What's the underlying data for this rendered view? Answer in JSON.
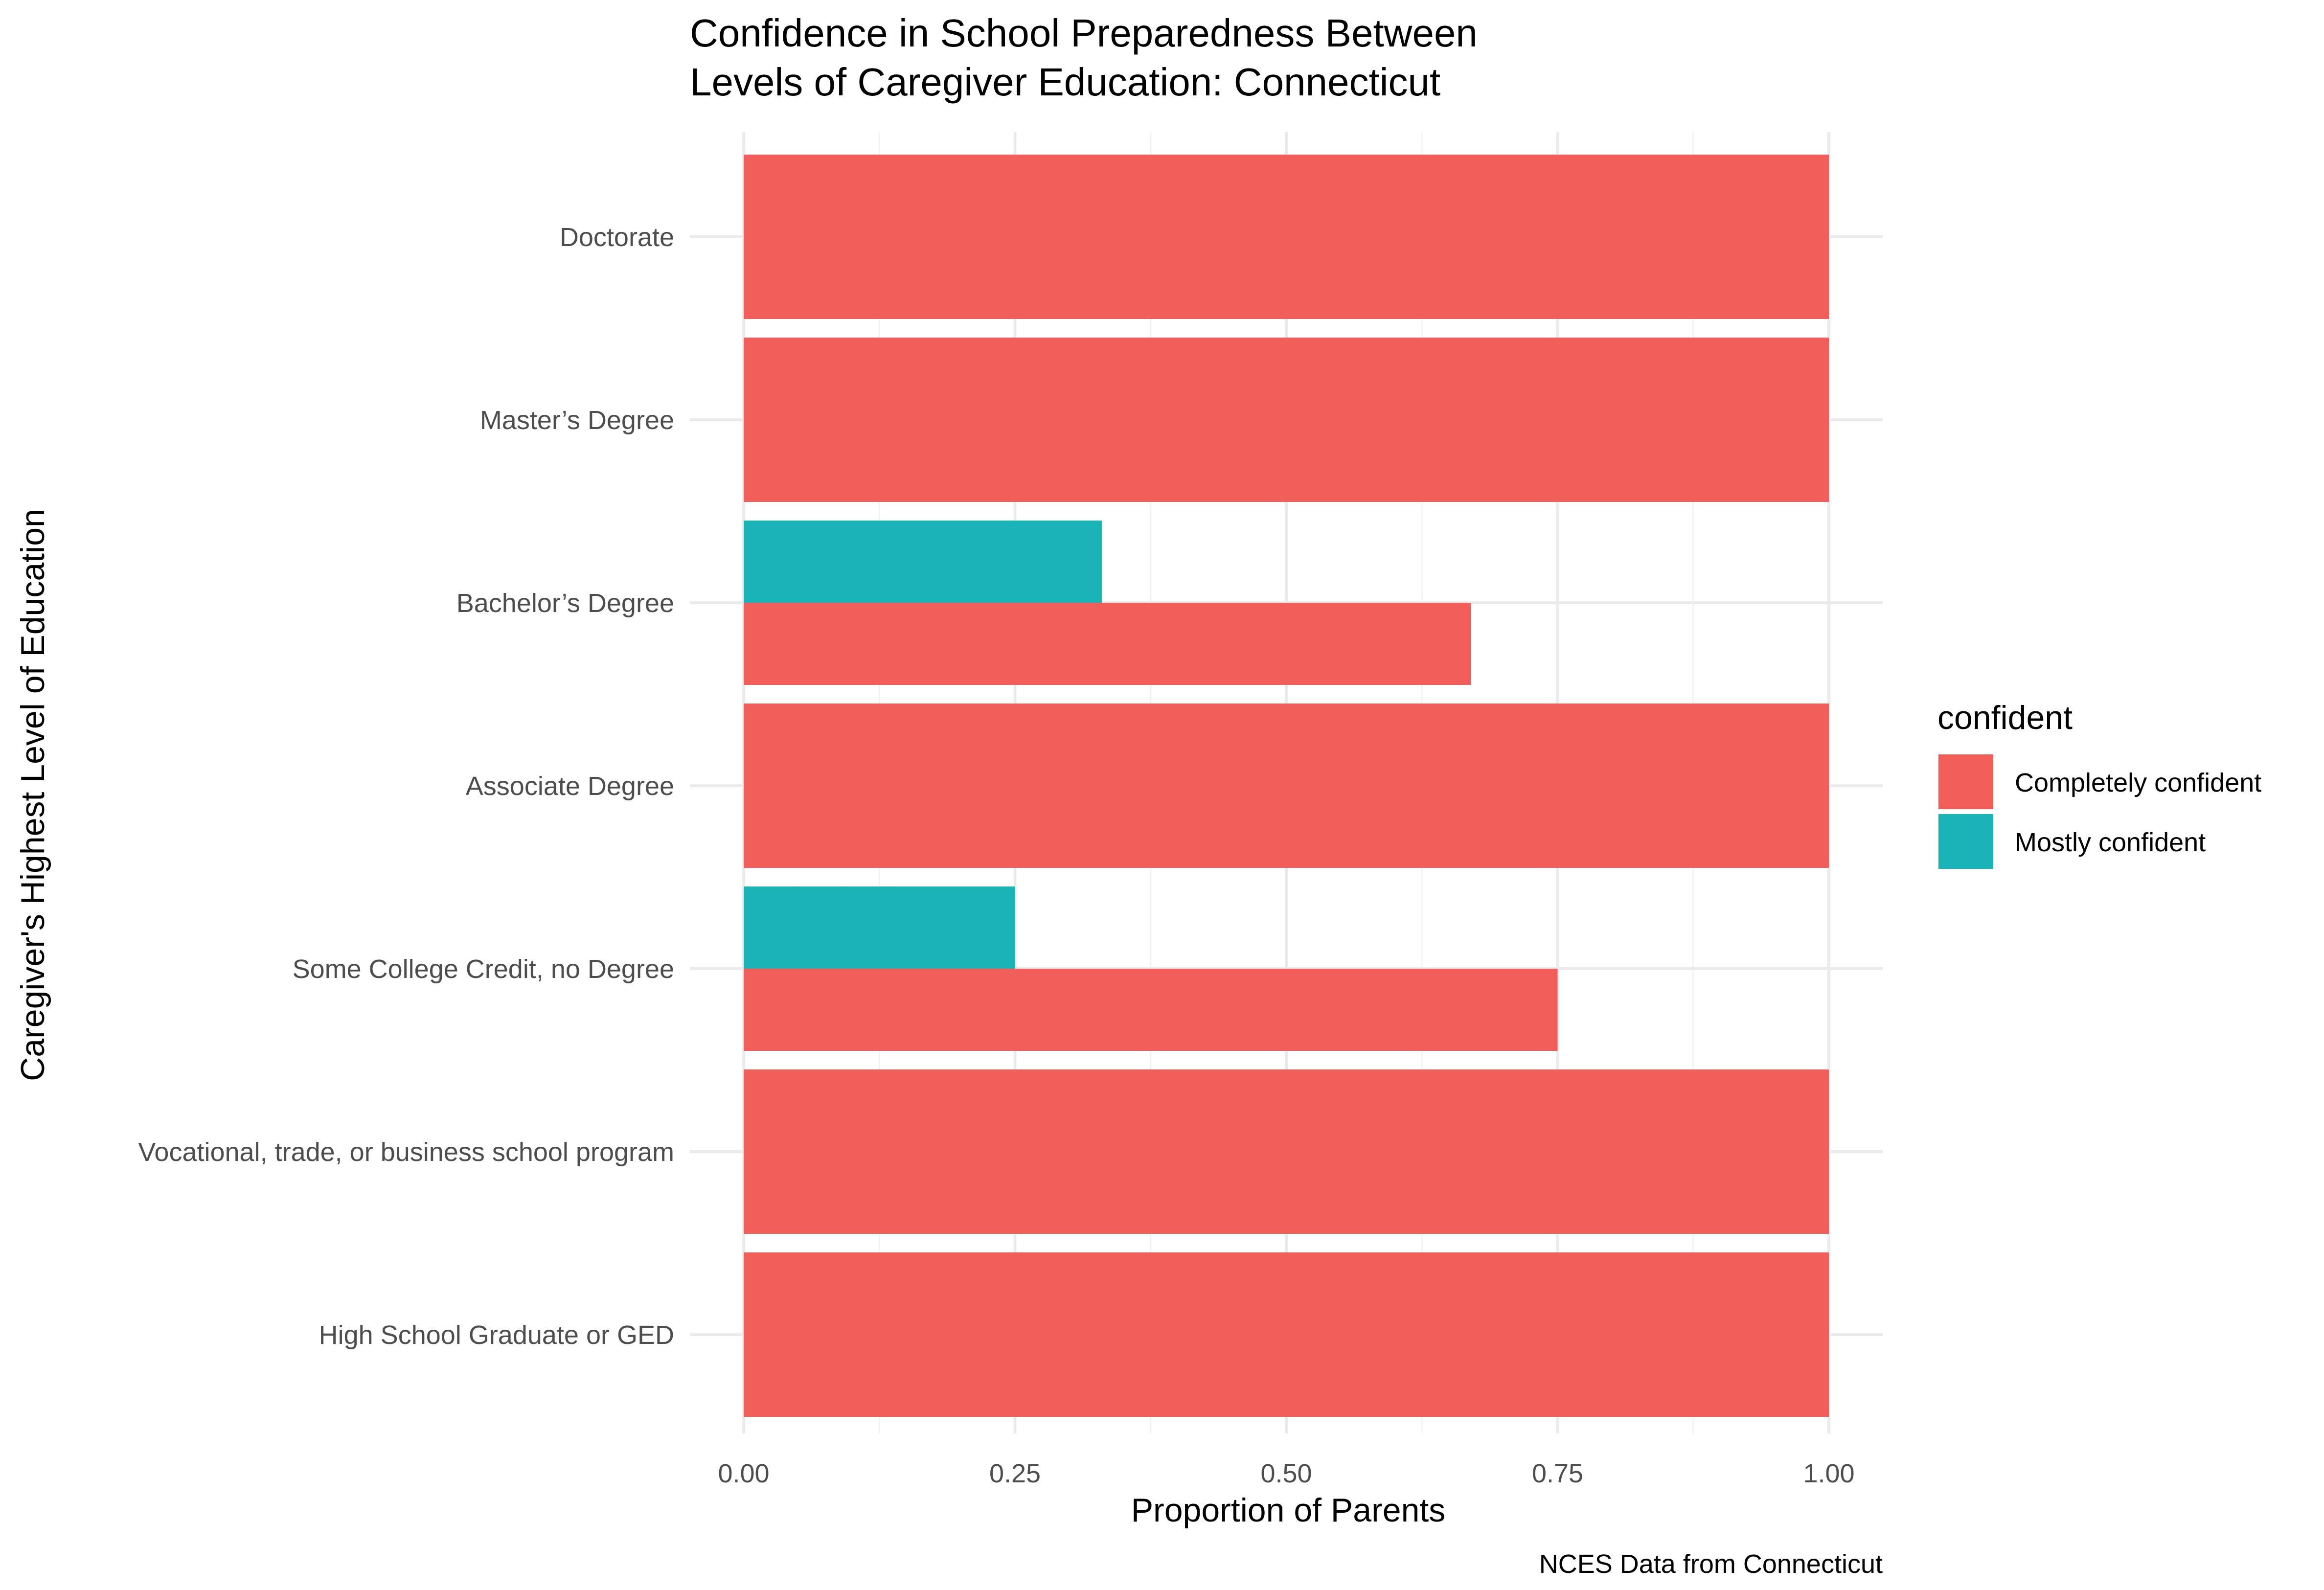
{
  "chart_data": {
    "type": "bar",
    "orientation": "horizontal",
    "title": "Confidence in School Preparedness Between Levels of Caregiver Education: Connecticut",
    "title_lines": [
      "Confidence in School Preparedness Between",
      "Levels of Caregiver Education: Connecticut"
    ],
    "xlabel": "Proportion of Parents",
    "ylabel": "Caregiver's Highest Level of Education",
    "caption": "NCES Data from Connecticut",
    "xlim": [
      0,
      1
    ],
    "x_ticks": [
      "0.00",
      "0.25",
      "0.50",
      "0.75",
      "1.00"
    ],
    "categories": [
      "Doctorate",
      "Master’s Degree",
      "Bachelor’s Degree",
      "Associate Degree",
      "Some College Credit, no Degree",
      "Vocational, trade, or business school program",
      "High School Graduate or GED"
    ],
    "series": [
      {
        "name": "Completely confident",
        "color": "#F25F5A",
        "values": [
          1.0,
          1.0,
          0.67,
          1.0,
          0.75,
          1.0,
          1.0
        ]
      },
      {
        "name": "Mostly confident",
        "color": "#1AB3B6",
        "values": [
          null,
          null,
          0.33,
          null,
          0.25,
          null,
          null
        ]
      }
    ],
    "legend": {
      "title": "confident",
      "placement": "right"
    },
    "grid": true
  }
}
